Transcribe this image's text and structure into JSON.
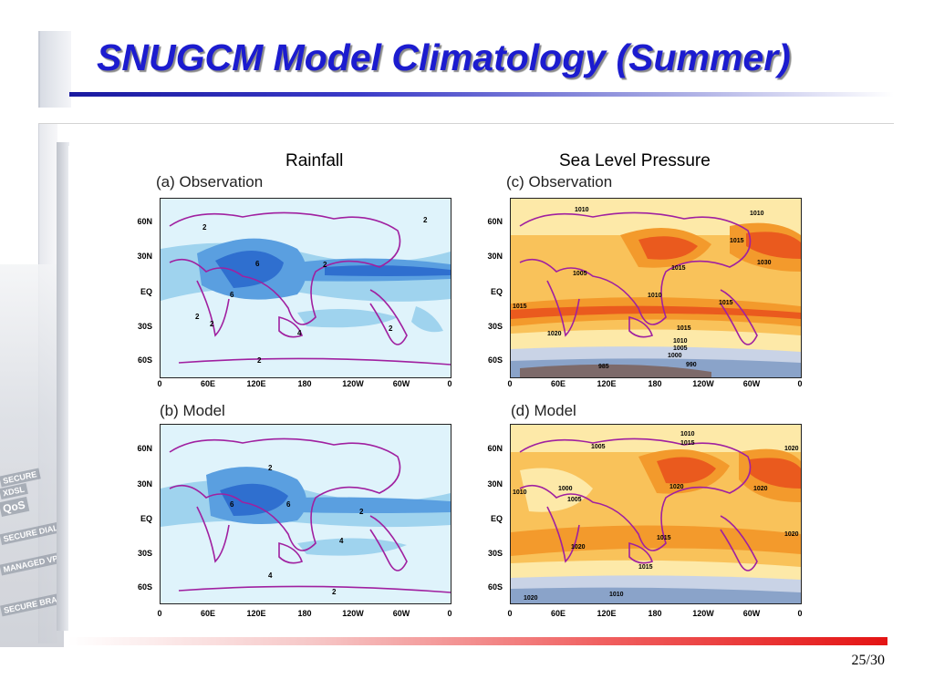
{
  "slide": {
    "title": "SNUGCM Model Climatology (Summer)",
    "page_number": "25/30",
    "side_words": [
      "SECURE",
      "XDSL",
      "QoS",
      "SECURE DIAL IN",
      "MANAGED VPN",
      "SECURE BRANCH OFFICE"
    ]
  },
  "figure": {
    "left_column_title": "Rainfall",
    "right_column_title": "Sea Level Pressure",
    "panels": [
      {
        "id": "a",
        "label": "(a) Observation"
      },
      {
        "id": "b",
        "label": "(b) Model"
      },
      {
        "id": "c",
        "label": "(c) Observation"
      },
      {
        "id": "d",
        "label": "(d) Model"
      }
    ],
    "lat_ticks_top": [
      "60N",
      "30N",
      "EQ",
      "30S",
      "60S"
    ],
    "lat_ticks_bottom": [
      "60N",
      "30N",
      "EQ",
      "30S",
      "60S"
    ],
    "lon_ticks": [
      "0",
      "60E",
      "120E",
      "180",
      "120W",
      "60W",
      "0"
    ],
    "rain_contours_a": [
      "2",
      "6",
      "2",
      "6",
      "2",
      "2",
      "4",
      "2",
      "2",
      "2"
    ],
    "rain_contours_b": [
      "2",
      "6",
      "6",
      "2",
      "4",
      "4",
      "2"
    ],
    "slp_contours_c": [
      "1010",
      "1010",
      "1015",
      "1030",
      "1005",
      "1015",
      "1010",
      "1015",
      "1015",
      "1020",
      "1015",
      "1010",
      "1005",
      "1000",
      "985",
      "990"
    ],
    "slp_contours_d": [
      "1010",
      "1005",
      "1015",
      "1020",
      "1020",
      "1010",
      "1000",
      "1005",
      "1015",
      "1020",
      "1020",
      "1015",
      "1020",
      "1010",
      "1020"
    ],
    "colors": {
      "rain_light": "#dff3fb",
      "rain_mid": "#9fd3ee",
      "rain_high": "#5a9fe0",
      "rain_max": "#2f6fcf",
      "slp_pale": "#fde9a8",
      "slp_mid": "#f9c25a",
      "slp_high": "#f39a2c",
      "slp_max": "#ea5a1e",
      "slp_low": "#8aa3c9",
      "coast": "#a020a0"
    }
  }
}
